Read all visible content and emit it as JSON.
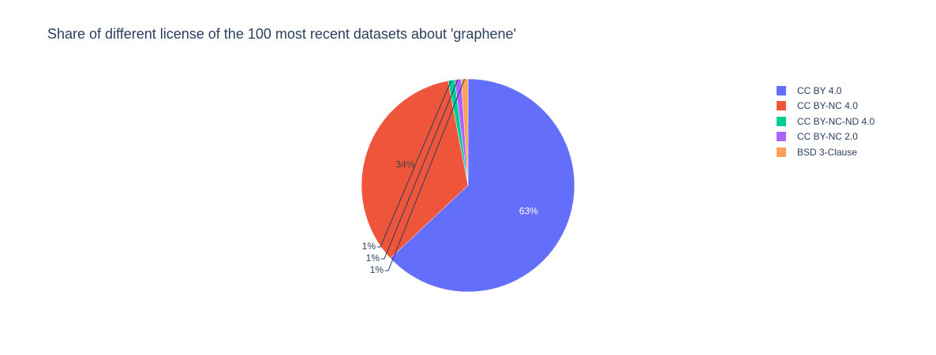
{
  "chart_data": {
    "type": "pie",
    "title": "Share of different license of the 100 most recent datasets about 'graphene'",
    "categories": [
      "CC BY 4.0",
      "CC BY-NC 4.0",
      "CC BY-NC-ND 4.0",
      "CC BY-NC 2.0",
      "BSD 3-Clause"
    ],
    "values": [
      63,
      34,
      1,
      1,
      1
    ],
    "labels": [
      "63%",
      "34%",
      "1%",
      "1%",
      "1%"
    ],
    "colors": [
      "#636efa",
      "#EF553B",
      "#00cc96",
      "#ab63fa",
      "#FFA15A"
    ],
    "legend_position": "top-right",
    "direction": "clockwise",
    "start_angle": "top"
  }
}
